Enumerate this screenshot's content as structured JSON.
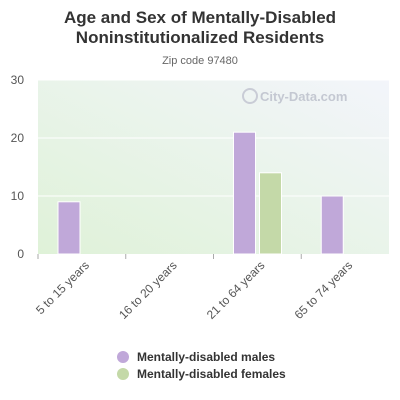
{
  "header": {
    "title_line1": "Age and Sex of Mentally-Disabled",
    "title_line2": "Noninstitutionalized Residents",
    "subtitle": "Zip code 97480"
  },
  "watermark": "City-Data.com",
  "colors": {
    "males": "#c0a8d9",
    "females": "#c4d9a8",
    "plot_bg_top": "#f3f5fb",
    "plot_bg_bottom": "#dff2d8",
    "axis_text": "#555555"
  },
  "chart_data": {
    "type": "bar",
    "title": "Age and Sex of Mentally-Disabled Noninstitutionalized Residents",
    "subtitle": "Zip code 97480",
    "categories": [
      "5 to 15 years",
      "16 to 20 years",
      "21 to 64 years",
      "65 to 74 years"
    ],
    "series": [
      {
        "name": "Mentally-disabled males",
        "values": [
          9,
          0,
          21,
          10
        ]
      },
      {
        "name": "Mentally-disabled females",
        "values": [
          0,
          0,
          14,
          0
        ]
      }
    ],
    "ylim": [
      0,
      30
    ],
    "yticks": [
      0,
      10,
      20,
      30
    ],
    "grid": true,
    "legend_position": "bottom"
  },
  "legend": {
    "males": "Mentally-disabled males",
    "females": "Mentally-disabled females"
  }
}
